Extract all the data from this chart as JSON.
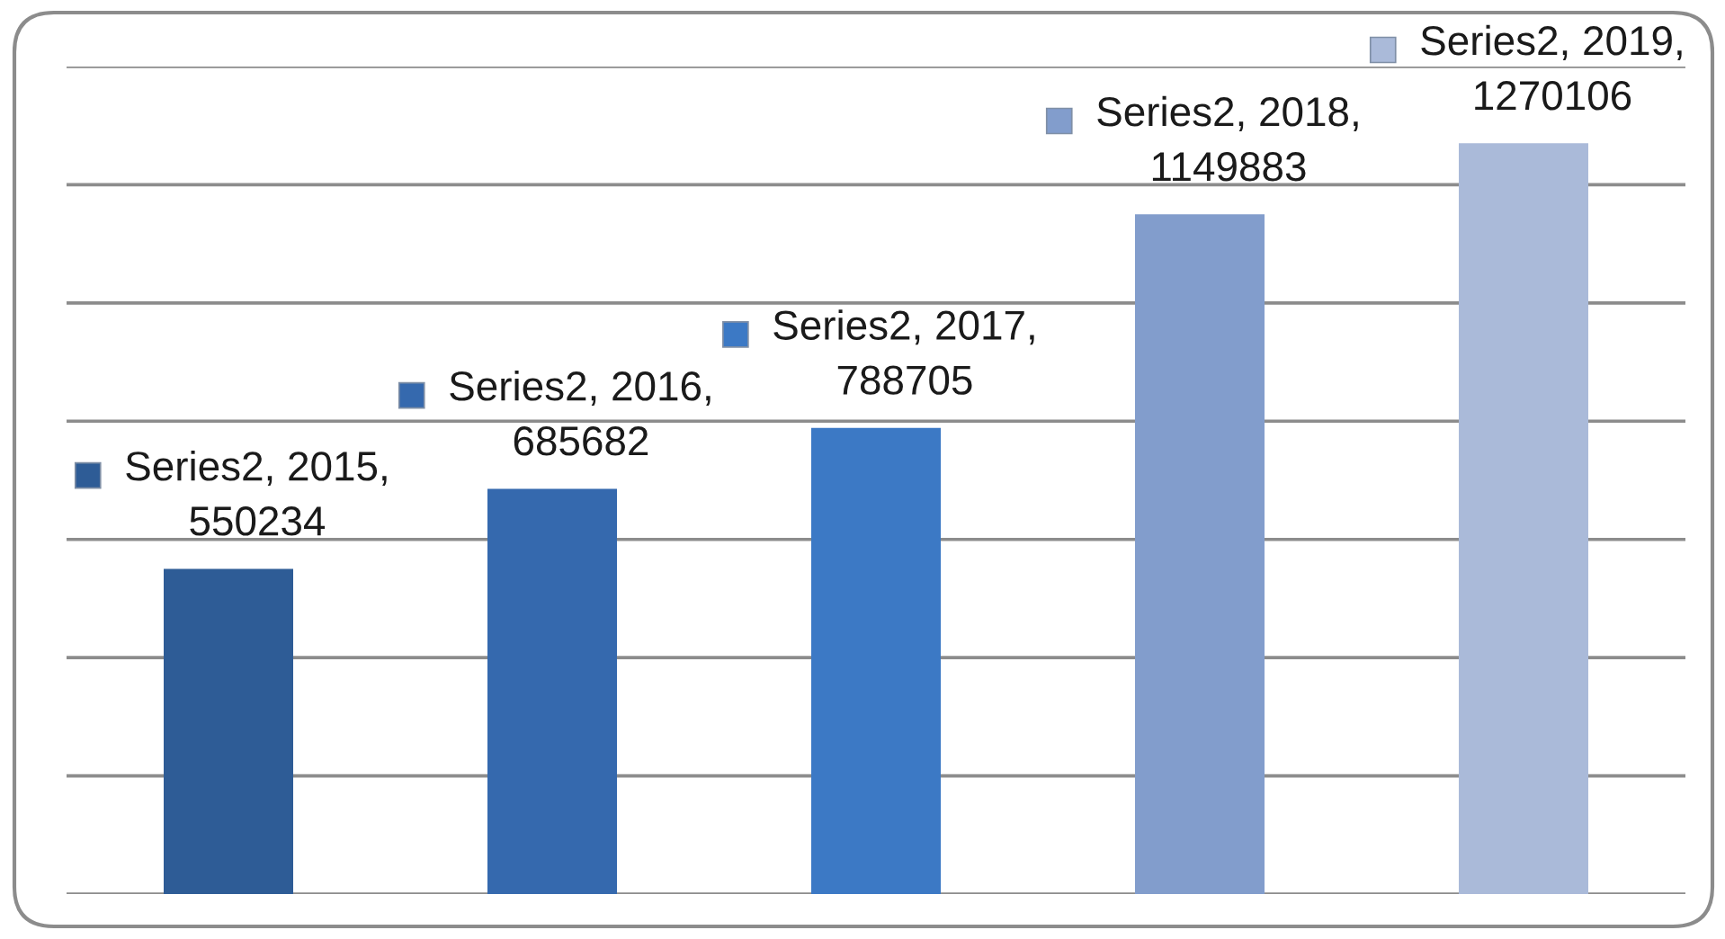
{
  "chart_data": {
    "type": "bar",
    "categories": [
      null,
      null,
      null,
      null,
      null
    ],
    "values": [
      550234,
      685682,
      788705,
      1149883,
      1270106
    ],
    "colors": [
      "#2e5c96",
      "#3569ae",
      "#3c79c5",
      "#829dcc",
      "#aabad9"
    ],
    "value_labels": [
      "Series2, 2015,\n550234",
      "Series2, 2016,\n685682",
      "Series2, 2017,\n788705",
      "Series2, 2018,\n1149883",
      "Series2, 2019,\n1270106"
    ],
    "ylim": [
      0,
      1400000
    ],
    "yticks": [
      {
        "value": 0,
        "label": null
      },
      {
        "value": 200000,
        "label": null
      },
      {
        "value": 400000,
        "label": null
      },
      {
        "value": 600000,
        "label": null
      },
      {
        "value": 800000,
        "label": null
      },
      {
        "value": 1000000,
        "label": null
      },
      {
        "value": 1200000,
        "label": null
      },
      {
        "value": 1400000,
        "label": null
      }
    ],
    "grid": "y"
  }
}
